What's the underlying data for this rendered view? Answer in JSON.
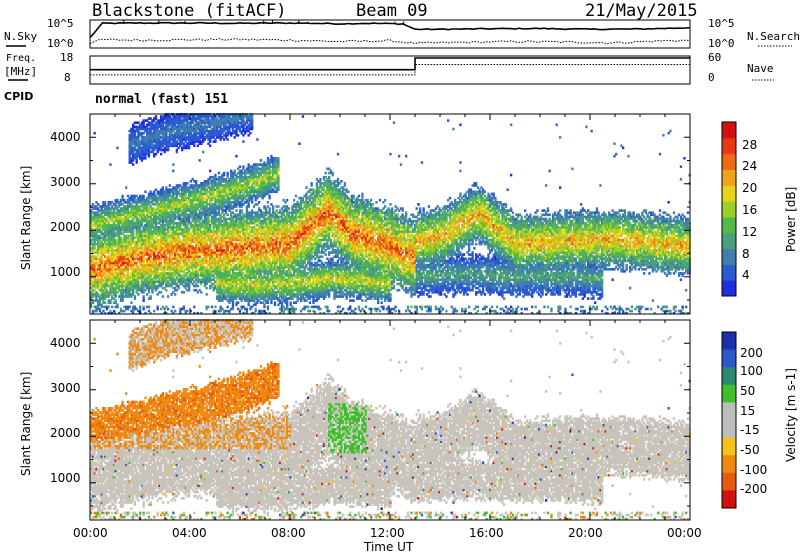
{
  "header": {
    "station": "Blackstone (fitACF)",
    "beam": "Beam 09",
    "date": "21/May/2015"
  },
  "side_labels": {
    "nsky": "N.Sky",
    "nsearch": "N.Search",
    "freq_line1": "Freq.",
    "freq_line2": "[MHz]",
    "nave": "Nave",
    "cpid": "CPID",
    "cpid_value": "normal (fast) 151"
  },
  "colors": {
    "power_scale": [
      "#1f2fe0",
      "#2a5bd0",
      "#3f7fae",
      "#4aa07a",
      "#57b84a",
      "#9ccf2a",
      "#e8d21a",
      "#f0a21a",
      "#ee6a14",
      "#e63b12",
      "#d21010"
    ],
    "velocity_scale": [
      "#1b2fae",
      "#2b57c8",
      "#2e8a6e",
      "#3fbf2a",
      "#bdbdbd",
      "#bdbdbd",
      "#f3c21a",
      "#ee8a12",
      "#e65a12",
      "#d21010"
    ]
  },
  "chart_data": [
    {
      "type": "line",
      "panel": "N.Sky / N.Search noise",
      "ylabel_left": "N.Sky",
      "ylabel_right": "N.Search",
      "left_ticks": [
        "10^5",
        "10^0"
      ],
      "right_ticks": [
        "10^5",
        "10^0"
      ],
      "series": [
        {
          "name": "N.Sky",
          "x_hours": [
            0,
            0.5,
            2,
            4,
            6,
            8,
            9,
            10,
            11,
            12.5,
            13,
            14,
            16,
            18,
            20,
            22,
            24
          ],
          "values": [
            0.4,
            0.95,
            0.96,
            0.96,
            0.95,
            0.96,
            0.95,
            0.93,
            0.95,
            0.93,
            0.72,
            0.72,
            0.74,
            0.75,
            0.72,
            0.73,
            0.78
          ]
        },
        {
          "name": "N.Search",
          "x_hours": [
            0,
            0.5,
            2,
            4,
            6,
            8,
            10,
            12,
            13,
            15,
            17,
            19,
            21,
            23,
            24
          ],
          "values": [
            0.2,
            0.32,
            0.3,
            0.32,
            0.33,
            0.3,
            0.25,
            0.28,
            0.18,
            0.22,
            0.25,
            0.23,
            0.2,
            0.28,
            0.3
          ]
        }
      ]
    },
    {
      "type": "line",
      "panel": "Frequency / Nave",
      "ylabel_left": "Freq. [MHz]",
      "ylabel_right": "Nave",
      "left_ticks": [
        "18",
        "8"
      ],
      "right_ticks": [
        "60",
        "0"
      ],
      "series": [
        {
          "name": "Freq.",
          "x_hours": [
            0,
            13,
            13,
            24
          ],
          "values": [
            0.55,
            0.55,
            1.0,
            1.0
          ]
        },
        {
          "name": "Nave",
          "x_hours": [
            0,
            13,
            13,
            24
          ],
          "values": [
            0.35,
            0.35,
            0.75,
            0.75
          ]
        }
      ]
    },
    {
      "type": "heatmap",
      "panel": "Power",
      "ylabel": "Slant Range [km]",
      "y_ticks": [
        "1000",
        "2000",
        "3000",
        "4000"
      ],
      "ylim": [
        200,
        4500
      ],
      "colorbar_label": "Power [dB]",
      "colorbar_ticks": [
        "4",
        "8",
        "12",
        "16",
        "20",
        "24",
        "28"
      ],
      "colorbar_range": [
        0,
        32
      ],
      "bands": [
        {
          "x_hours": [
            0,
            2,
            4,
            6,
            8,
            9.5,
            10.5,
            12,
            13
          ],
          "range_km": [
            1150,
            1400,
            1550,
            1600,
            1700,
            2400,
            1900,
            1650,
            1400
          ],
          "width_km": 400,
          "peak_db": 28
        },
        {
          "x_hours": [
            0,
            2,
            4,
            6,
            7.5
          ],
          "range_km": [
            2100,
            2350,
            2600,
            2900,
            3200
          ],
          "width_km": 200,
          "peak_db": 18
        },
        {
          "x_hours": [
            13,
            14,
            15.5,
            17,
            19,
            21,
            23,
            24
          ],
          "range_km": [
            1750,
            1850,
            2350,
            1700,
            1750,
            1800,
            1700,
            1650
          ],
          "width_km": 300,
          "peak_db": 24
        },
        {
          "x_hours": [
            5,
            6.5,
            8,
            10,
            12
          ],
          "range_km": [
            850,
            800,
            850,
            950,
            850
          ],
          "width_km": 200,
          "peak_db": 20
        },
        {
          "x_hours": [
            13,
            15,
            17,
            19,
            20.5
          ],
          "range_km": [
            1000,
            1050,
            1000,
            1000,
            950
          ],
          "width_km": 200,
          "peak_db": 12
        },
        {
          "x_hours": [
            1.5,
            3,
            5,
            6.5
          ],
          "range_km": [
            3800,
            4100,
            4300,
            4500
          ],
          "width_km": 200,
          "peak_db": 8
        }
      ]
    },
    {
      "type": "heatmap",
      "panel": "Velocity",
      "ylabel": "Slant Range [km]",
      "y_ticks": [
        "1000",
        "2000",
        "3000",
        "4000"
      ],
      "ylim": [
        200,
        4500
      ],
      "xlabel": "Time UT",
      "x_ticks": [
        "00:00",
        "04:00",
        "08:00",
        "12:00",
        "16:00",
        "20:00",
        "00:00"
      ],
      "x_range_hours": [
        0,
        24
      ],
      "colorbar_label": "Velocity [m s-1]",
      "colorbar_ticks": [
        "-200",
        "-100",
        "-50",
        "-15",
        "15",
        "50",
        "100",
        "200"
      ],
      "colorbar_range": [
        -250,
        250
      ]
    }
  ]
}
